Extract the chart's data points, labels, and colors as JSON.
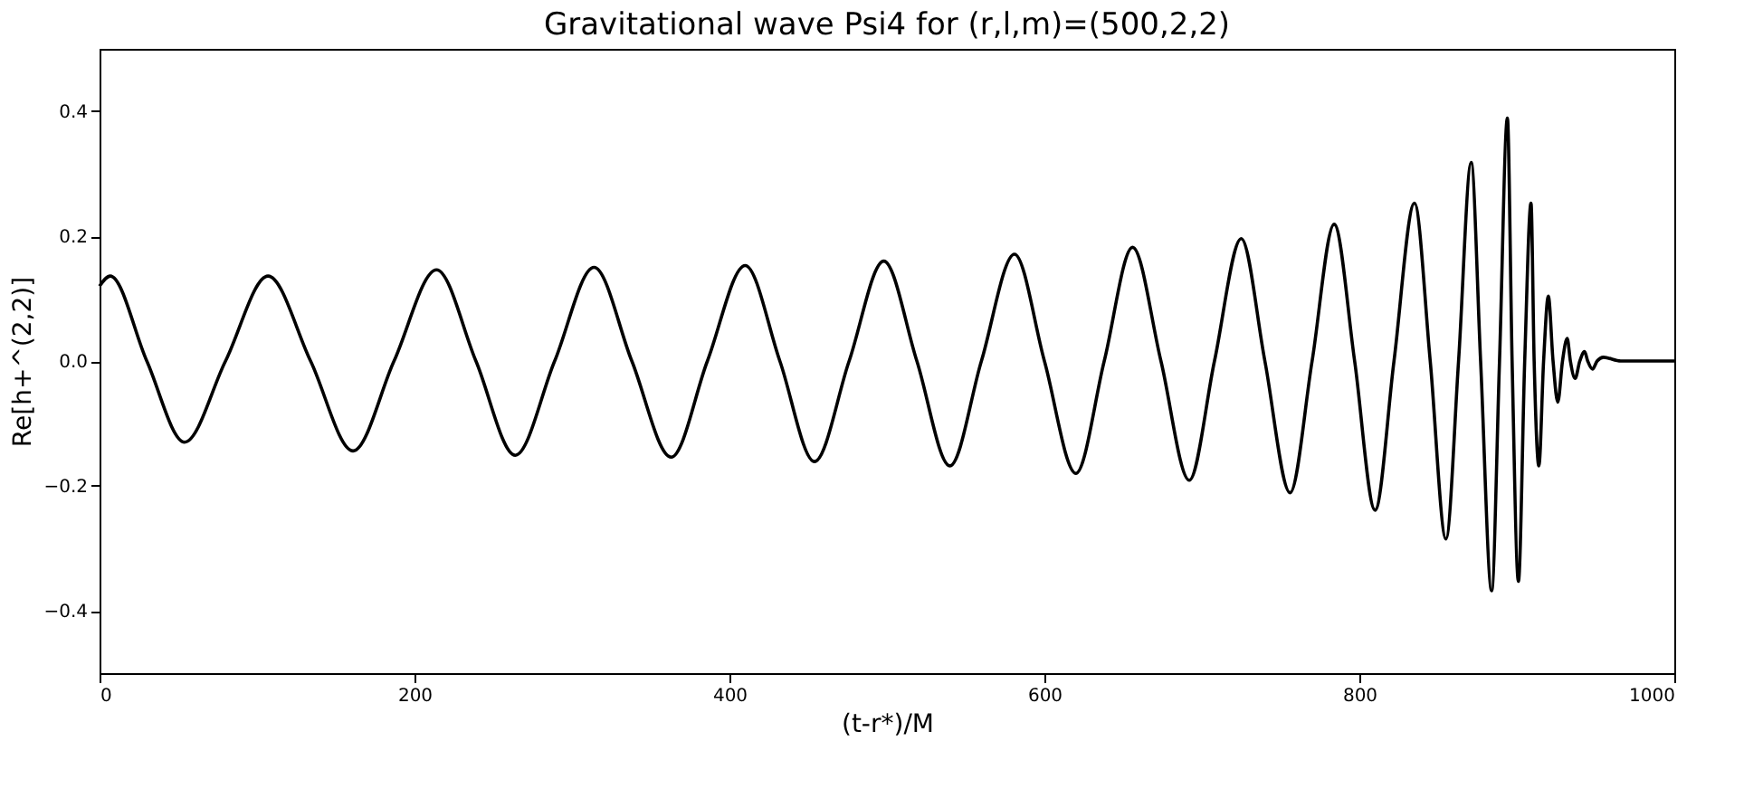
{
  "chart_data": {
    "type": "line",
    "title": "Gravitational wave Psi4 for (r,l,m)=(500,2,2)",
    "xlabel": "(t-r*)/M",
    "ylabel": "Re[h+^(2,2)]",
    "x": [
      0,
      6.8,
      30,
      54,
      80,
      107,
      134,
      161,
      187,
      214,
      239,
      264,
      289,
      314,
      338,
      363,
      386,
      410,
      432,
      454,
      476,
      498,
      519,
      540,
      560,
      581,
      600,
      620,
      638,
      656,
      674,
      692,
      708,
      725,
      740,
      756,
      770,
      784,
      797,
      810,
      822,
      835,
      845,
      855,
      863,
      871,
      877,
      884,
      889,
      894,
      897,
      901,
      905,
      909,
      911,
      914,
      917,
      920,
      923,
      926,
      929,
      932,
      934,
      937,
      940,
      943,
      945,
      948,
      951,
      955,
      966,
      1000
    ],
    "series": [
      {
        "color": "#000000",
        "values": [
          0.12,
          0.136,
          0,
          -0.13,
          0,
          0.136,
          0,
          -0.144,
          0,
          0.146,
          0,
          -0.151,
          0,
          0.15,
          0,
          -0.154,
          0,
          0.153,
          0,
          -0.161,
          0,
          0.16,
          0,
          -0.168,
          0,
          0.171,
          0,
          -0.18,
          0,
          0.182,
          0,
          -0.191,
          0,
          0.196,
          0,
          -0.211,
          0,
          0.219,
          0,
          -0.239,
          0,
          0.253,
          0,
          -0.285,
          0,
          0.318,
          0,
          -0.368,
          0,
          0.389,
          0,
          -0.353,
          0,
          0.253,
          0,
          -0.168,
          0,
          0.104,
          0,
          -0.066,
          0,
          0.036,
          0,
          -0.028,
          0,
          0.015,
          0,
          -0.013,
          0,
          0.006,
          0,
          0
        ]
      }
    ],
    "xlim": [
      0,
      1000
    ],
    "xticks": [
      0,
      200,
      400,
      600,
      800,
      1000
    ],
    "ylim": [
      -0.5,
      0.5
    ],
    "yticks": [
      {
        "value": -0.4,
        "label": "−0.4"
      },
      {
        "value": -0.2,
        "label": "−0.2"
      },
      {
        "value": 0,
        "label": "0.0"
      },
      0.2,
      0.4
    ],
    "grid": false,
    "marker": "none",
    "line_style": "solid"
  }
}
